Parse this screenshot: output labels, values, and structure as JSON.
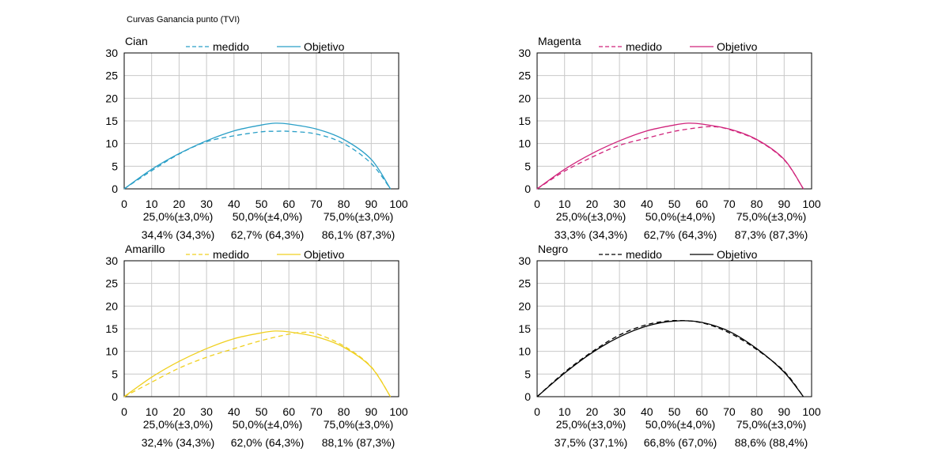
{
  "page_title": "Curvas Ganancia punto (TVI)",
  "legend": {
    "measured": "medido",
    "target": "Objetivo"
  },
  "chart_data": [
    {
      "type": "line",
      "title": "Cian",
      "color": "#2a9fc7",
      "xlim": [
        0,
        100
      ],
      "ylim": [
        0,
        30
      ],
      "x_ticks": [
        0,
        10,
        20,
        30,
        40,
        50,
        60,
        70,
        80,
        90,
        100
      ],
      "y_ticks": [
        0,
        5,
        10,
        15,
        20,
        25,
        30
      ],
      "grid": true,
      "legend_position": "top",
      "series": [
        {
          "name": "medido",
          "style": "dashed",
          "x": [
            0,
            10,
            20,
            30,
            40,
            50,
            55,
            60,
            70,
            80,
            90,
            97
          ],
          "y": [
            0,
            4.0,
            7.7,
            10.4,
            11.7,
            12.6,
            12.7,
            12.7,
            12.1,
            10.0,
            5.6,
            0
          ]
        },
        {
          "name": "Objetivo",
          "style": "solid",
          "x": [
            0,
            10,
            20,
            30,
            40,
            50,
            55,
            60,
            70,
            80,
            90,
            97
          ],
          "y": [
            0,
            4.3,
            7.8,
            10.6,
            12.8,
            14.1,
            14.5,
            14.3,
            13.2,
            10.9,
            6.5,
            0
          ]
        }
      ],
      "annotations": {
        "targets": [
          "25,0%(±3,0%)",
          "50,0%(±4,0%)",
          "75,0%(±3,0%)"
        ],
        "values": [
          "34,4% (34,3%)",
          "62,7% (64,3%)",
          "86,1% (87,3%)"
        ]
      }
    },
    {
      "type": "line",
      "title": "Magenta",
      "color": "#d0237b",
      "xlim": [
        0,
        100
      ],
      "ylim": [
        0,
        30
      ],
      "x_ticks": [
        0,
        10,
        20,
        30,
        40,
        50,
        60,
        70,
        80,
        90,
        100
      ],
      "y_ticks": [
        0,
        5,
        10,
        15,
        20,
        25,
        30
      ],
      "grid": true,
      "legend_position": "top",
      "series": [
        {
          "name": "medido",
          "style": "dashed",
          "x": [
            0,
            10,
            20,
            30,
            40,
            50,
            60,
            65,
            70,
            80,
            90,
            97
          ],
          "y": [
            0,
            3.9,
            7.0,
            9.6,
            11.2,
            12.7,
            13.6,
            13.7,
            13.1,
            10.8,
            6.4,
            0
          ]
        },
        {
          "name": "Objetivo",
          "style": "solid",
          "x": [
            0,
            10,
            20,
            30,
            40,
            50,
            55,
            60,
            70,
            80,
            90,
            97
          ],
          "y": [
            0,
            4.3,
            7.8,
            10.6,
            12.8,
            14.1,
            14.5,
            14.3,
            13.2,
            10.9,
            6.5,
            0
          ]
        }
      ],
      "annotations": {
        "targets": [
          "25,0%(±3,0%)",
          "50,0%(±4,0%)",
          "75,0%(±3,0%)"
        ],
        "values": [
          "33,3% (34,3%)",
          "62,7% (64,3%)",
          "87,3% (87,3%)"
        ]
      }
    },
    {
      "type": "line",
      "title": "Amarillo",
      "color": "#f0d020",
      "xlim": [
        0,
        100
      ],
      "ylim": [
        0,
        30
      ],
      "x_ticks": [
        0,
        10,
        20,
        30,
        40,
        50,
        60,
        70,
        80,
        90,
        100
      ],
      "y_ticks": [
        0,
        5,
        10,
        15,
        20,
        25,
        30
      ],
      "grid": true,
      "legend_position": "top",
      "series": [
        {
          "name": "medido",
          "style": "dashed",
          "x": [
            0,
            10,
            20,
            30,
            40,
            50,
            60,
            65,
            70,
            80,
            90,
            97
          ],
          "y": [
            0,
            3.2,
            6.3,
            8.7,
            10.6,
            12.4,
            13.8,
            14.2,
            13.9,
            11.2,
            6.6,
            0
          ]
        },
        {
          "name": "Objetivo",
          "style": "solid",
          "x": [
            0,
            10,
            20,
            30,
            40,
            50,
            55,
            60,
            70,
            80,
            90,
            97
          ],
          "y": [
            0,
            4.3,
            7.8,
            10.6,
            12.8,
            14.1,
            14.5,
            14.3,
            13.2,
            10.9,
            6.5,
            0
          ]
        }
      ],
      "annotations": {
        "targets": [
          "25,0%(±3,0%)",
          "50,0%(±4,0%)",
          "75,0%(±3,0%)"
        ],
        "values": [
          "32,4% (34,3%)",
          "62,0% (64,3%)",
          "88,1% (87,3%)"
        ]
      }
    },
    {
      "type": "line",
      "title": "Negro",
      "color": "#000000",
      "xlim": [
        0,
        100
      ],
      "ylim": [
        0,
        30
      ],
      "x_ticks": [
        0,
        10,
        20,
        30,
        40,
        50,
        60,
        70,
        80,
        90,
        100
      ],
      "y_ticks": [
        0,
        5,
        10,
        15,
        20,
        25,
        30
      ],
      "grid": true,
      "legend_position": "top",
      "series": [
        {
          "name": "medido",
          "style": "dashed",
          "x": [
            0,
            10,
            20,
            30,
            40,
            50,
            60,
            70,
            80,
            90,
            97
          ],
          "y": [
            0,
            5.4,
            9.9,
            13.6,
            15.9,
            16.8,
            16.3,
            14.1,
            10.4,
            5.6,
            0
          ]
        },
        {
          "name": "Objetivo",
          "style": "solid",
          "x": [
            0,
            10,
            20,
            30,
            40,
            50,
            60,
            70,
            80,
            90,
            97
          ],
          "y": [
            0,
            5.2,
            9.7,
            13.2,
            15.6,
            16.7,
            16.4,
            14.4,
            10.6,
            5.4,
            0
          ]
        }
      ],
      "annotations": {
        "targets": [
          "25,0%(±3,0%)",
          "50,0%(±4,0%)",
          "75,0%(±3,0%)"
        ],
        "values": [
          "37,5% (37,1%)",
          "66,8% (67,0%)",
          "88,6% (88,4%)"
        ]
      }
    }
  ]
}
